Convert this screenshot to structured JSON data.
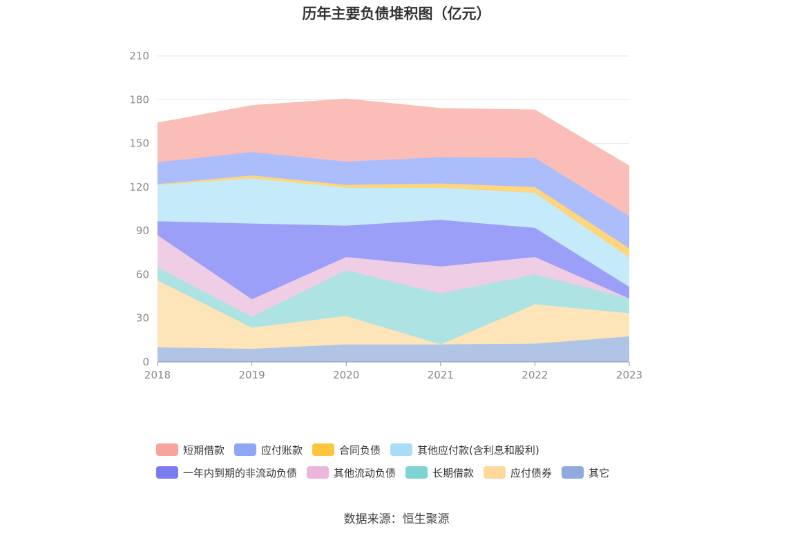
{
  "chart_data": {
    "type": "area",
    "stacked": true,
    "title": "历年主要负债堆积图（亿元）",
    "xlabel": "",
    "ylabel": "",
    "x": [
      "2018",
      "2019",
      "2020",
      "2021",
      "2022",
      "2023"
    ],
    "ylim": [
      0,
      210
    ],
    "yticks": [
      0,
      30,
      60,
      90,
      120,
      150,
      180,
      210
    ],
    "grid": true,
    "legend_position": "bottom",
    "series": [
      {
        "name": "其它",
        "color": "#8FAADC",
        "fill": "#B0C4E6",
        "values": [
          10,
          9,
          12,
          12,
          12.5,
          17.5
        ]
      },
      {
        "name": "应付债券",
        "color": "#FFD89B",
        "fill": "#FDE4B9",
        "values": [
          46,
          14.5,
          19.5,
          0,
          27,
          16
        ]
      },
      {
        "name": "长期借款",
        "color": "#7FD3D3",
        "fill": "#ADE3E3",
        "values": [
          9,
          7.5,
          31.5,
          35,
          20.5,
          10
        ]
      },
      {
        "name": "其他流动负债",
        "color": "#EBB6DC",
        "fill": "#EFCDE5",
        "values": [
          22,
          12,
          9,
          18.5,
          12,
          0
        ]
      },
      {
        "name": "一年内到期的非流动负债",
        "color": "#7B7BF0",
        "fill": "#9C9FF7",
        "values": [
          9.5,
          52,
          21.5,
          32,
          20,
          8
        ]
      },
      {
        "name": "其他应付款(含利息和股利)",
        "color": "#A9DDF5",
        "fill": "#C5EAFA",
        "values": [
          25,
          31,
          26,
          22,
          24,
          20
        ]
      },
      {
        "name": "合同负债",
        "color": "#FFC53D",
        "fill": "#FDD67D",
        "values": [
          0.5,
          2,
          2,
          3,
          4,
          6.5
        ]
      },
      {
        "name": "应付账款",
        "color": "#8FA6F7",
        "fill": "#ABBEFB",
        "values": [
          15,
          16,
          16,
          18,
          20,
          22
        ]
      },
      {
        "name": "短期借款",
        "color": "#F7A59C",
        "fill": "#FBBDB8",
        "values": [
          27,
          32,
          43,
          33.5,
          33,
          34.5
        ]
      }
    ]
  },
  "legend_rows": [
    [
      {
        "label": "短期借款",
        "color": "#F7A59C"
      },
      {
        "label": "应付账款",
        "color": "#8FA6F7"
      },
      {
        "label": "合同负债",
        "color": "#FFC53D"
      },
      {
        "label": "其他应付款(含利息和股利)",
        "color": "#A9DDF5"
      }
    ],
    [
      {
        "label": "一年内到期的非流动负债",
        "color": "#7B7BF0"
      },
      {
        "label": "其他流动负债",
        "color": "#EBB6DC"
      },
      {
        "label": "长期借款",
        "color": "#7FD3D3"
      },
      {
        "label": "应付债券",
        "color": "#FFD89B"
      },
      {
        "label": "其它",
        "color": "#8FAADC"
      }
    ]
  ],
  "source": "数据来源：恒生聚源"
}
